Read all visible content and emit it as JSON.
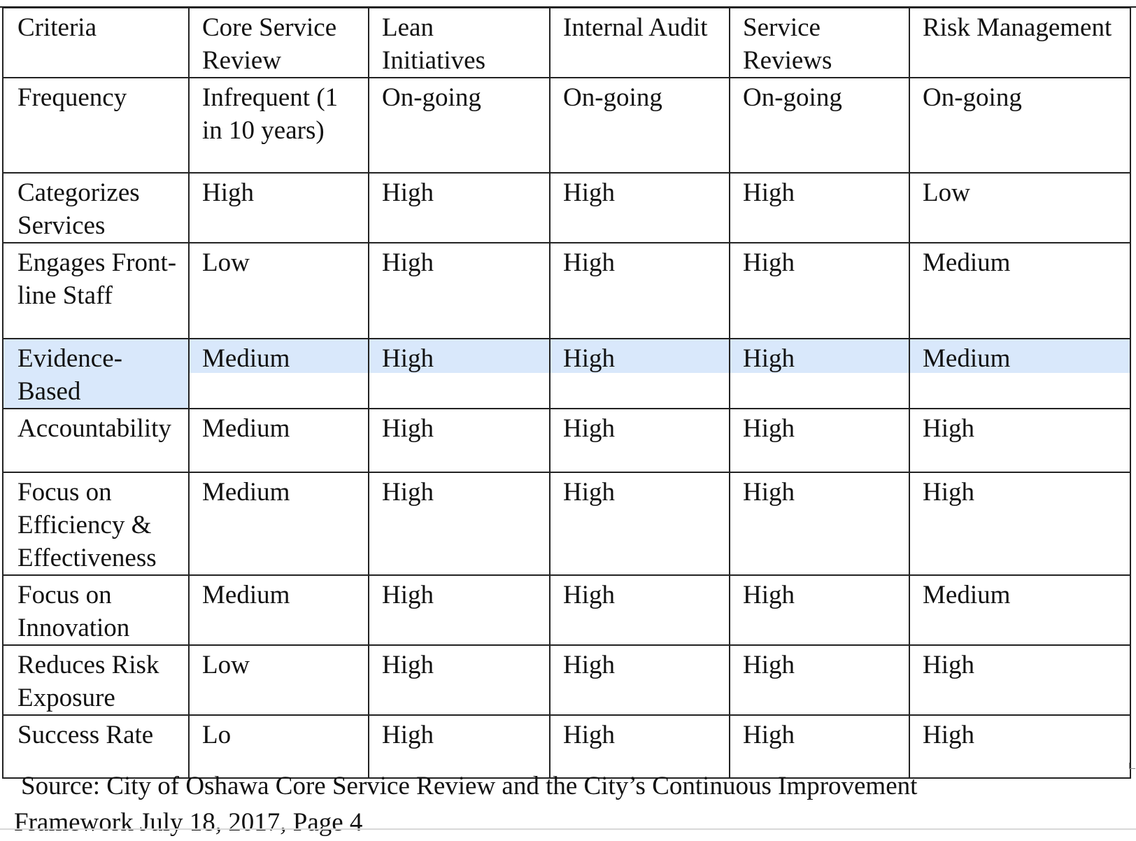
{
  "table": {
    "headers": [
      "Criteria",
      "Core Service Review",
      "Lean Initiatives",
      "Internal Audit",
      "Service Reviews",
      "Risk Management"
    ],
    "rows": [
      {
        "criterion": "Frequency",
        "values": [
          "Infrequent (1 in 10 years)",
          "On-going",
          "On-going",
          "On-going",
          "On-going"
        ]
      },
      {
        "criterion": "Categorizes Services",
        "values": [
          "High",
          "High",
          "High",
          "High",
          "Low"
        ]
      },
      {
        "criterion": "Engages Front-line Staff",
        "values": [
          "Low",
          "High",
          "High",
          "High",
          "Medium"
        ]
      },
      {
        "criterion": "Evidence-Based",
        "values": [
          "Medium",
          "High",
          "High",
          "High",
          "Medium"
        ]
      },
      {
        "criterion": "Accountability",
        "values": [
          "Medium",
          "High",
          "High",
          "High",
          "High"
        ]
      },
      {
        "criterion": "Focus on Efficiency & Effectiveness",
        "values": [
          "Medium",
          "High",
          "High",
          "High",
          "High"
        ]
      },
      {
        "criterion": "Focus on Innovation",
        "values": [
          "Medium",
          "High",
          "High",
          "High",
          "Medium"
        ]
      },
      {
        "criterion": "Reduces Risk Exposure",
        "values": [
          "Low",
          "High",
          "High",
          "High",
          "High"
        ]
      },
      {
        "criterion": "Success Rate",
        "values": [
          "Lo",
          "High",
          "High",
          "High",
          "High"
        ]
      }
    ]
  },
  "source": {
    "line1": "Source: City of Oshawa Core Service Review and the City’s Continuous Improvement",
    "line2": "Framework July 18, 2017, Page 4"
  },
  "colors": {
    "selection_highlight": "#d9e8fb",
    "border": "#222222"
  }
}
